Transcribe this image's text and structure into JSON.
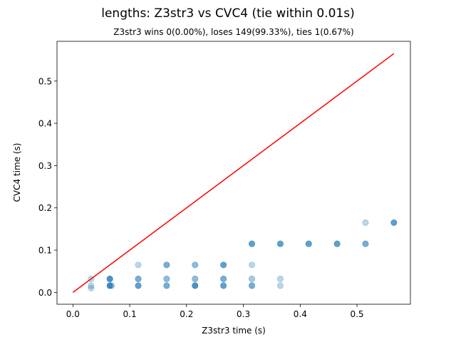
{
  "chart_data": {
    "type": "scatter",
    "title": "lengths: Z3str3 vs CVC4 (tie within 0.01s)",
    "subtitle": "Z3str3 wins 0(0.00%), loses 149(99.33%), ties 1(0.67%)",
    "xlabel": "Z3str3 time (s)",
    "ylabel": "CVC4 time (s)",
    "xlim": [
      -0.028,
      0.594
    ],
    "ylim": [
      -0.028,
      0.594
    ],
    "xticks": [
      0.0,
      0.1,
      0.2,
      0.3,
      0.4,
      0.5
    ],
    "yticks": [
      0.0,
      0.1,
      0.2,
      0.3,
      0.4,
      0.5
    ],
    "grid": false,
    "point_color": "#1f77b4",
    "line_color": "#ff0000",
    "diagonal_line": {
      "x": [
        0.0,
        0.565
      ],
      "y": [
        0.0,
        0.565
      ]
    },
    "points": [
      {
        "x": 0.032,
        "y": 0.032,
        "alpha": 0.3
      },
      {
        "x": 0.032,
        "y": 0.016,
        "alpha": 0.3
      },
      {
        "x": 0.032,
        "y": 0.01,
        "alpha": 0.3
      },
      {
        "x": 0.065,
        "y": 0.032,
        "alpha": 0.8
      },
      {
        "x": 0.065,
        "y": 0.016,
        "alpha": 0.8
      },
      {
        "x": 0.068,
        "y": 0.016,
        "alpha": 0.4
      },
      {
        "x": 0.115,
        "y": 0.065,
        "alpha": 0.3
      },
      {
        "x": 0.115,
        "y": 0.032,
        "alpha": 0.6
      },
      {
        "x": 0.115,
        "y": 0.016,
        "alpha": 0.7
      },
      {
        "x": 0.165,
        "y": 0.065,
        "alpha": 0.6
      },
      {
        "x": 0.165,
        "y": 0.032,
        "alpha": 0.5
      },
      {
        "x": 0.165,
        "y": 0.016,
        "alpha": 0.6
      },
      {
        "x": 0.215,
        "y": 0.065,
        "alpha": 0.5
      },
      {
        "x": 0.215,
        "y": 0.032,
        "alpha": 0.5
      },
      {
        "x": 0.215,
        "y": 0.016,
        "alpha": 0.8
      },
      {
        "x": 0.265,
        "y": 0.065,
        "alpha": 0.7
      },
      {
        "x": 0.265,
        "y": 0.032,
        "alpha": 0.6
      },
      {
        "x": 0.265,
        "y": 0.016,
        "alpha": 0.7
      },
      {
        "x": 0.315,
        "y": 0.115,
        "alpha": 0.7
      },
      {
        "x": 0.315,
        "y": 0.065,
        "alpha": 0.3
      },
      {
        "x": 0.315,
        "y": 0.032,
        "alpha": 0.4
      },
      {
        "x": 0.315,
        "y": 0.016,
        "alpha": 0.6
      },
      {
        "x": 0.365,
        "y": 0.115,
        "alpha": 0.7
      },
      {
        "x": 0.365,
        "y": 0.032,
        "alpha": 0.3
      },
      {
        "x": 0.365,
        "y": 0.016,
        "alpha": 0.3
      },
      {
        "x": 0.415,
        "y": 0.115,
        "alpha": 0.7
      },
      {
        "x": 0.465,
        "y": 0.115,
        "alpha": 0.7
      },
      {
        "x": 0.515,
        "y": 0.165,
        "alpha": 0.3
      },
      {
        "x": 0.515,
        "y": 0.115,
        "alpha": 0.6
      },
      {
        "x": 0.565,
        "y": 0.165,
        "alpha": 0.7
      }
    ]
  }
}
